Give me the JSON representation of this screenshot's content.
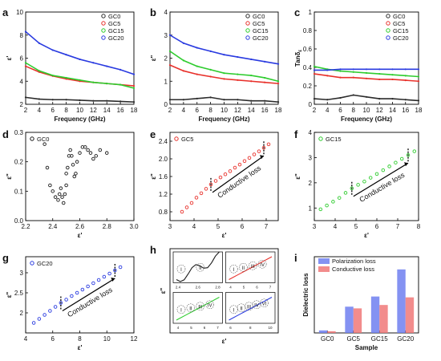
{
  "figure": {
    "panel_letters": [
      "a",
      "b",
      "c",
      "d",
      "e",
      "f",
      "g",
      "h",
      "i"
    ]
  },
  "chart_data": [
    {
      "panel": "a",
      "type": "line",
      "xlabel": "Frequency (GHz)",
      "ylabel": "ε'",
      "xlim": [
        2,
        18
      ],
      "ylim": [
        2,
        10
      ],
      "xticks": [
        2,
        4,
        6,
        8,
        10,
        12,
        14,
        16,
        18
      ],
      "yticks": [
        2,
        4,
        6,
        8,
        10
      ],
      "series": [
        {
          "name": "GC0",
          "color": "#2b2b2b",
          "x": [
            2,
            4,
            6,
            8,
            10,
            12,
            14,
            16,
            18
          ],
          "y": [
            2.6,
            2.45,
            2.4,
            2.4,
            2.35,
            2.3,
            2.3,
            2.25,
            2.2
          ]
        },
        {
          "name": "GC5",
          "color": "#e8312b",
          "x": [
            2,
            4,
            6,
            8,
            10,
            12,
            14,
            16,
            18
          ],
          "y": [
            5.3,
            4.8,
            4.45,
            4.2,
            4.0,
            3.9,
            3.8,
            3.7,
            3.6
          ]
        },
        {
          "name": "GC15",
          "color": "#2ecc2e",
          "x": [
            2,
            4,
            6,
            8,
            10,
            12,
            14,
            16,
            18
          ],
          "y": [
            5.6,
            4.9,
            4.5,
            4.3,
            4.1,
            3.9,
            3.8,
            3.7,
            3.4
          ]
        },
        {
          "name": "GC20",
          "color": "#2a3be0",
          "x": [
            2,
            4,
            6,
            8,
            10,
            12,
            14,
            16,
            18
          ],
          "y": [
            8.3,
            7.3,
            6.7,
            6.3,
            5.9,
            5.6,
            5.3,
            5.0,
            4.6
          ]
        }
      ]
    },
    {
      "panel": "b",
      "type": "line",
      "xlabel": "Frequency (GHz)",
      "ylabel": "ε\"",
      "xlim": [
        2,
        18
      ],
      "ylim": [
        0,
        4
      ],
      "xticks": [
        2,
        4,
        6,
        8,
        10,
        12,
        14,
        16,
        18
      ],
      "yticks": [
        0,
        1,
        2,
        3,
        4
      ],
      "series": [
        {
          "name": "GC0",
          "color": "#2b2b2b",
          "x": [
            2,
            4,
            6,
            8,
            10,
            12,
            14,
            16,
            18
          ],
          "y": [
            0.2,
            0.2,
            0.25,
            0.3,
            0.2,
            0.2,
            0.15,
            0.15,
            0.1
          ]
        },
        {
          "name": "GC5",
          "color": "#e8312b",
          "x": [
            2,
            4,
            6,
            8,
            10,
            12,
            14,
            16,
            18
          ],
          "y": [
            1.7,
            1.45,
            1.3,
            1.2,
            1.1,
            1.05,
            1.0,
            0.95,
            0.9
          ]
        },
        {
          "name": "GC15",
          "color": "#2ecc2e",
          "x": [
            2,
            4,
            6,
            8,
            10,
            12,
            14,
            16,
            18
          ],
          "y": [
            2.3,
            1.9,
            1.65,
            1.5,
            1.35,
            1.3,
            1.25,
            1.15,
            1.0
          ]
        },
        {
          "name": "GC20",
          "color": "#2a3be0",
          "x": [
            2,
            4,
            6,
            8,
            10,
            12,
            14,
            16,
            18
          ],
          "y": [
            3.0,
            2.65,
            2.45,
            2.3,
            2.15,
            2.05,
            1.95,
            1.85,
            1.75
          ]
        }
      ]
    },
    {
      "panel": "c",
      "type": "line",
      "xlabel": "Frequency (GHz)",
      "ylabel": "Tanδ",
      "ylabel_sub": "ε",
      "xlim": [
        2,
        18
      ],
      "ylim": [
        0,
        1.0
      ],
      "xticks": [
        2,
        4,
        6,
        8,
        10,
        12,
        14,
        16,
        18
      ],
      "yticks": [
        0.0,
        0.2,
        0.4,
        0.6,
        0.8,
        1.0
      ],
      "series": [
        {
          "name": "GC0",
          "color": "#2b2b2b",
          "x": [
            2,
            4,
            6,
            8,
            10,
            12,
            14,
            16,
            18
          ],
          "y": [
            0.06,
            0.05,
            0.07,
            0.1,
            0.08,
            0.06,
            0.06,
            0.05,
            0.04
          ]
        },
        {
          "name": "GC5",
          "color": "#e8312b",
          "x": [
            2,
            4,
            6,
            8,
            10,
            12,
            14,
            16,
            18
          ],
          "y": [
            0.33,
            0.31,
            0.29,
            0.29,
            0.28,
            0.27,
            0.27,
            0.26,
            0.25
          ]
        },
        {
          "name": "GC15",
          "color": "#2ecc2e",
          "x": [
            2,
            4,
            6,
            8,
            10,
            12,
            14,
            16,
            18
          ],
          "y": [
            0.41,
            0.38,
            0.36,
            0.35,
            0.34,
            0.33,
            0.32,
            0.31,
            0.3
          ]
        },
        {
          "name": "GC20",
          "color": "#2a3be0",
          "x": [
            2,
            4,
            6,
            8,
            10,
            12,
            14,
            16,
            18
          ],
          "y": [
            0.37,
            0.37,
            0.38,
            0.38,
            0.38,
            0.38,
            0.38,
            0.38,
            0.38
          ]
        }
      ]
    },
    {
      "panel": "d",
      "type": "scatter",
      "xlabel": "ε'",
      "ylabel": "ε\"",
      "xlim": [
        2.2,
        3.0
      ],
      "ylim": [
        0.0,
        0.3
      ],
      "xticks": [
        2.2,
        2.4,
        2.6,
        2.8,
        3.0
      ],
      "xtick_labels": [
        "2.2",
        "2.4",
        "2.6",
        "2.8",
        "3.0"
      ],
      "yticks": [
        0.0,
        0.1,
        0.2,
        0.3
      ],
      "ytick_labels": [
        "0.0",
        "0.1",
        "0.2",
        "0.3"
      ],
      "series": [
        {
          "name": "GC0",
          "color": "#1a1a1a",
          "x": [
            2.34,
            2.36,
            2.38,
            2.4,
            2.42,
            2.44,
            2.45,
            2.46,
            2.47,
            2.48,
            2.49,
            2.5,
            2.5,
            2.51,
            2.52,
            2.53,
            2.54,
            2.55,
            2.56,
            2.57,
            2.58,
            2.6,
            2.62,
            2.64,
            2.66,
            2.68,
            2.7,
            2.72,
            2.75,
            2.8
          ],
          "y": [
            0.26,
            0.18,
            0.12,
            0.1,
            0.08,
            0.07,
            0.09,
            0.11,
            0.08,
            0.06,
            0.09,
            0.12,
            0.16,
            0.18,
            0.22,
            0.24,
            0.22,
            0.19,
            0.15,
            0.16,
            0.2,
            0.23,
            0.25,
            0.25,
            0.24,
            0.23,
            0.21,
            0.22,
            0.24,
            0.23
          ]
        }
      ]
    },
    {
      "panel": "e",
      "type": "scatter",
      "xlabel": "ε'",
      "ylabel": "ε\"",
      "xlim": [
        3,
        7.5
      ],
      "ylim": [
        0.6,
        2.6
      ],
      "xticks": [
        3,
        4,
        5,
        6,
        7
      ],
      "xtick_labels": [
        "3",
        "4",
        "5",
        "6",
        "7"
      ],
      "yticks": [
        0.8,
        1.2,
        1.6,
        2.0,
        2.4
      ],
      "ytick_labels": [
        "0.8",
        "1.2",
        "1.6",
        "2.0",
        "2.4"
      ],
      "annotation": "Conductive loss",
      "series": [
        {
          "name": "GC5",
          "color": "#e8312b",
          "x": [
            3.5,
            3.7,
            3.9,
            4.1,
            4.3,
            4.5,
            4.7,
            4.9,
            5.1,
            5.3,
            5.5,
            5.7,
            5.9,
            6.1,
            6.3,
            6.5,
            6.7,
            6.9,
            7.1
          ],
          "y": [
            0.8,
            0.9,
            1.0,
            1.12,
            1.22,
            1.32,
            1.42,
            1.5,
            1.58,
            1.65,
            1.72,
            1.8,
            1.87,
            1.95,
            2.02,
            2.1,
            2.17,
            2.25,
            2.33
          ]
        }
      ]
    },
    {
      "panel": "f",
      "type": "scatter",
      "xlabel": "ε'",
      "ylabel": "ε\"",
      "xlim": [
        3,
        8
      ],
      "ylim": [
        0.5,
        4
      ],
      "xticks": [
        3,
        4,
        5,
        6,
        7,
        8
      ],
      "xtick_labels": [
        "3",
        "4",
        "5",
        "6",
        "7",
        "8"
      ],
      "yticks": [
        1,
        2,
        3,
        4
      ],
      "ytick_labels": [
        "1",
        "2",
        "3",
        "4"
      ],
      "annotation": "Conductive loss",
      "series": [
        {
          "name": "GC15",
          "color": "#2ecc2e",
          "x": [
            3.3,
            3.6,
            3.9,
            4.2,
            4.5,
            4.8,
            5.1,
            5.4,
            5.7,
            6.0,
            6.3,
            6.6,
            6.9,
            7.2,
            7.5,
            7.8
          ],
          "y": [
            0.95,
            1.1,
            1.25,
            1.4,
            1.6,
            1.78,
            1.92,
            2.05,
            2.2,
            2.35,
            2.5,
            2.65,
            2.8,
            2.95,
            3.1,
            3.25
          ]
        }
      ]
    },
    {
      "panel": "g",
      "type": "scatter",
      "xlabel": "ε'",
      "ylabel": "ε\"",
      "xlim": [
        4,
        12
      ],
      "ylim": [
        1.5,
        3.4
      ],
      "xticks": [
        4,
        6,
        8,
        10,
        12
      ],
      "xtick_labels": [
        "4",
        "6",
        "8",
        "10",
        "12"
      ],
      "yticks": [
        2,
        2.5,
        3
      ],
      "ytick_labels": [
        "2",
        "2.5",
        "3"
      ],
      "annotation": "Conductive loss",
      "series": [
        {
          "name": "GC20",
          "color": "#2a3be0",
          "x": [
            4.6,
            5.0,
            5.4,
            5.8,
            6.2,
            6.6,
            7.0,
            7.4,
            7.8,
            8.2,
            8.6,
            9.0,
            9.4,
            9.8,
            10.2,
            10.6,
            11.0
          ],
          "y": [
            1.75,
            1.85,
            1.95,
            2.05,
            2.15,
            2.25,
            2.33,
            2.42,
            2.5,
            2.58,
            2.66,
            2.74,
            2.82,
            2.9,
            2.98,
            3.06,
            3.14
          ]
        }
      ]
    },
    {
      "panel": "h",
      "type": "scatter",
      "xlabel": "ε'",
      "ylabel": "ε\"",
      "insets": [
        {
          "id": "h1",
          "color": "#1a1a1a",
          "xticks": [
            "2.4",
            "2.6",
            "2.8"
          ],
          "circles": [
            "I",
            "II"
          ]
        },
        {
          "id": "h2",
          "color": "#e8312b",
          "xticks": [
            "4",
            "5",
            "6",
            "7"
          ],
          "circles": [
            "I",
            "II",
            "III",
            "IV"
          ]
        },
        {
          "id": "h3",
          "color": "#2ecc2e",
          "xticks": [
            "4",
            "5",
            "6",
            "7"
          ],
          "circles": [
            "I",
            "II",
            "III",
            "IV"
          ]
        },
        {
          "id": "h4",
          "color": "#2a3be0",
          "xticks": [
            "6",
            "8",
            "10"
          ],
          "circles": [
            "I",
            "II",
            "III",
            "IV",
            "VI"
          ]
        }
      ]
    },
    {
      "panel": "i",
      "type": "bar",
      "xlabel": "Sample",
      "ylabel": "Dielectric loss",
      "categories": [
        "GC0",
        "GC5",
        "GC15",
        "GC20"
      ],
      "ylim": [
        0,
        1.8
      ],
      "series": [
        {
          "name": "Polarization loss",
          "color": "#6f7ff0",
          "values": [
            0.06,
            0.62,
            0.86,
            1.5
          ]
        },
        {
          "name": "Conductive loss",
          "color": "#f07878",
          "values": [
            0.04,
            0.58,
            0.66,
            0.84
          ]
        }
      ]
    }
  ]
}
